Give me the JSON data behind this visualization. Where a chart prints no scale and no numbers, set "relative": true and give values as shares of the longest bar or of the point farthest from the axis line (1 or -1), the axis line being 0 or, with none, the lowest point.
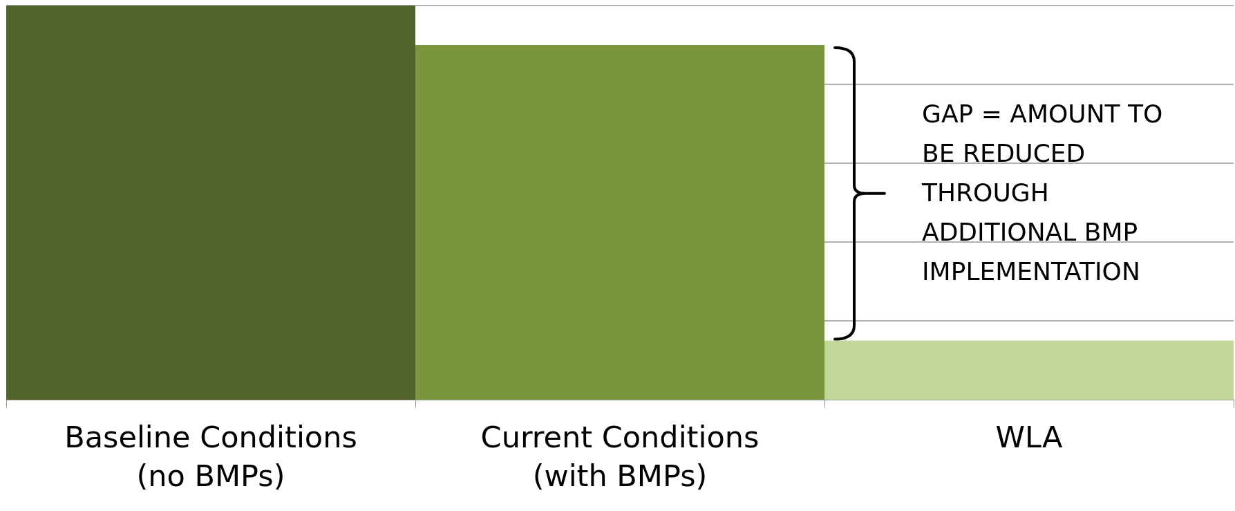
{
  "chart_data": {
    "type": "bar",
    "relative": true,
    "categories": [
      "Baseline Conditions\n(no BMPs)",
      "Current Conditions\n(with BMPs)",
      "WLA"
    ],
    "values": [
      1,
      0.9,
      0.15
    ],
    "colors": [
      "#51632a",
      "#79963f",
      "#c4d79b"
    ],
    "grid": "y",
    "annotations": [
      "GAP = AMOUNT TO\nBE REDUCED\nTHROUGH\nADDITIONAL BMP\nIMPLEMENTATION"
    ]
  }
}
